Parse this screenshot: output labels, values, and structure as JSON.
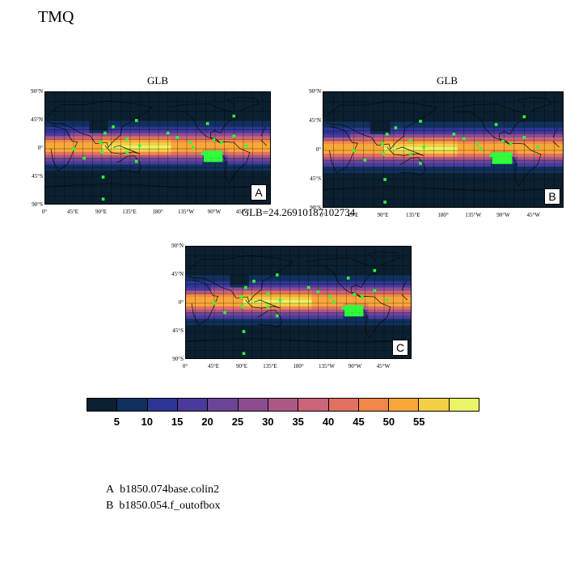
{
  "title": "TMQ",
  "panels": [
    {
      "id": "A",
      "title": "GLB",
      "label": "A"
    },
    {
      "id": "B",
      "title": "GLB",
      "label": "B"
    },
    {
      "id": "C",
      "title": "GLB=24.26910187102734",
      "label": "C"
    }
  ],
  "lat_ticks": [
    "90°N",
    "45°N",
    "0°",
    "45°S",
    "90°S"
  ],
  "lon_ticks": [
    "0°",
    "45°E",
    "90°E",
    "135°E",
    "180°",
    "135°W",
    "90°W",
    "45°W"
  ],
  "colorbar": {
    "colors": [
      "#0b2030",
      "#11305c",
      "#2d3694",
      "#4a3a9c",
      "#6a4596",
      "#8c4d8e",
      "#ab5885",
      "#c9647a",
      "#e17063",
      "#f2874a",
      "#f8a838",
      "#f3cf45",
      "#e9f566"
    ],
    "labels": [
      "5",
      "10",
      "15",
      "20",
      "25",
      "30",
      "35",
      "40",
      "45",
      "50",
      "55"
    ]
  },
  "legend": [
    {
      "key": "A",
      "text": "b1850.074base.colin2"
    },
    {
      "key": "B",
      "text": "b1850.054.f_outofbox"
    }
  ],
  "colors": {
    "stipple": "#2dff3a",
    "grid": "#000000",
    "coast": "#0a0a0a"
  }
}
